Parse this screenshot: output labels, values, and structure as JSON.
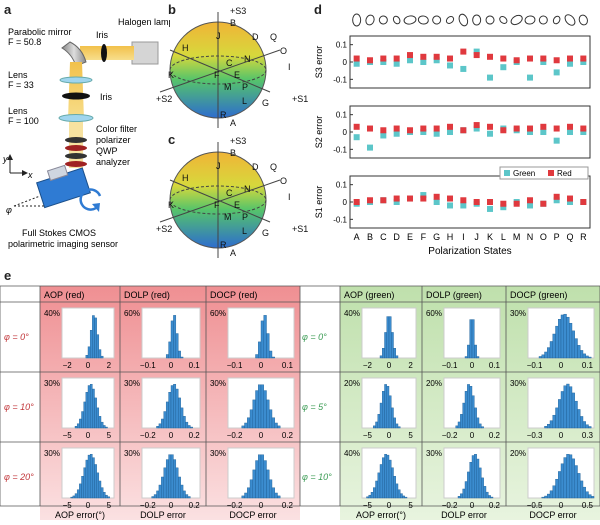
{
  "panels": {
    "a": "a",
    "b": "b",
    "c": "c",
    "d": "d",
    "e": "e"
  },
  "panel_a": {
    "parabolic_mirror": "Parabolic mirror",
    "mirror_f": "F = 50.8",
    "iris_top": "Iris",
    "halogen_lamp": "Halogen lamp",
    "lens1": "Lens",
    "lens1_f": "F = 33",
    "iris_mid": "Iris",
    "lens2": "Lens",
    "lens2_f": "F = 100",
    "color_filter": "Color filter",
    "polarizer": "polarizer",
    "qwp": "QWP",
    "analyzer": "analyzer",
    "axis_y": "y",
    "axis_x": "x",
    "phi": "φ",
    "sensor_line1": "Full Stokes CMOS",
    "sensor_line2": "polarimetric imaging sensor"
  },
  "sphere_labels": [
    "+S3",
    "B",
    "J",
    "D",
    "Q",
    "H",
    "O",
    "I",
    "K",
    "C",
    "N",
    "F",
    "E",
    "+S2",
    "+S1",
    "M",
    "P",
    "L",
    "G",
    "R",
    "A"
  ],
  "sphere_c_labels": [
    "+S3",
    "B",
    "J",
    "D",
    "Q",
    "H",
    "O",
    "I",
    "K",
    "C",
    "N",
    "F",
    "E",
    "+S2",
    "+S1",
    "M",
    "P",
    "L",
    "G",
    "R",
    "A"
  ],
  "chart_data": {
    "type": "scatter",
    "xlabel": "Polarization States",
    "categories": [
      "A",
      "B",
      "C",
      "D",
      "E",
      "F",
      "G",
      "H",
      "I",
      "J",
      "K",
      "L",
      "M",
      "N",
      "O",
      "P",
      "Q",
      "R"
    ],
    "legend": [
      "Green",
      "Red"
    ],
    "colors": {
      "green": "#5cc6c9",
      "red": "#e0393e"
    },
    "panels": [
      {
        "ylabel": "S3 error",
        "yticks": [
          0.1,
          0,
          -0.1
        ],
        "ylim": [
          -0.15,
          0.15
        ],
        "green": [
          -0.01,
          0.0,
          0.0,
          -0.01,
          0.01,
          0.0,
          0.01,
          -0.02,
          -0.04,
          0.06,
          -0.09,
          -0.03,
          0.0,
          -0.09,
          0.0,
          -0.06,
          -0.01,
          0.0
        ],
        "red": [
          0.02,
          0.01,
          0.02,
          0.02,
          0.04,
          0.03,
          0.03,
          0.02,
          0.06,
          0.04,
          0.03,
          0.02,
          0.01,
          0.02,
          0.02,
          0.01,
          0.02,
          0.02
        ]
      },
      {
        "ylabel": "S2 error",
        "yticks": [
          0.1,
          0,
          -0.1
        ],
        "ylim": [
          -0.15,
          0.15
        ],
        "green": [
          -0.03,
          -0.09,
          -0.02,
          -0.01,
          0.0,
          0.0,
          -0.01,
          0.0,
          0.01,
          0.02,
          -0.01,
          0.02,
          0.01,
          0.0,
          0.0,
          -0.05,
          0.0,
          0.0
        ],
        "red": [
          0.03,
          0.02,
          0.01,
          0.02,
          0.01,
          0.02,
          0.02,
          0.03,
          0.01,
          0.04,
          0.03,
          0.01,
          0.02,
          0.02,
          0.03,
          0.02,
          0.03,
          0.02
        ]
      },
      {
        "ylabel": "S1 error",
        "yticks": [
          0.1,
          0,
          -0.1
        ],
        "ylim": [
          -0.15,
          0.15
        ],
        "green": [
          -0.01,
          0.0,
          0.01,
          0.0,
          0.02,
          0.04,
          0.0,
          -0.02,
          -0.02,
          -0.01,
          -0.04,
          -0.03,
          0.0,
          -0.02,
          -0.01,
          0.01,
          0.0,
          0.0
        ],
        "red": [
          0.0,
          0.01,
          0.01,
          0.02,
          0.02,
          0.02,
          0.03,
          0.02,
          0.01,
          0.0,
          0.0,
          -0.01,
          -0.01,
          0.01,
          -0.01,
          0.03,
          0.02,
          0.0
        ]
      }
    ]
  },
  "table": {
    "red_header": [
      "AOP (red)",
      "DOLP (red)",
      "DOCP (red)"
    ],
    "green_header": [
      "AOP (green)",
      "DOLP (green)",
      "DOCP (green)"
    ],
    "red_rows": [
      "φ = 0°",
      "φ = 10°",
      "φ = 20°"
    ],
    "green_rows": [
      "φ = 0°",
      "φ = 5°",
      "φ = 10°"
    ],
    "footer": [
      "AOP error(°)",
      "DOLP error",
      "DOCP error",
      "AOP error(°)",
      "DOLP error",
      "DOCP error"
    ],
    "colors": {
      "red_row": "#c2373b",
      "green_row": "#3c9c55"
    },
    "cells": [
      [
        {
          "yl": "40%",
          "ticks": [
            "−2",
            "0",
            "2"
          ],
          "mu": 0.62,
          "s": 0.06
        },
        {
          "yl": "60%",
          "ticks": [
            "−0.1",
            "0",
            "0.1"
          ],
          "mu": 0.55,
          "s": 0.05
        },
        {
          "yl": "60%",
          "ticks": [
            "−0.1",
            "0",
            "0.1"
          ],
          "mu": 0.55,
          "s": 0.05
        },
        {
          "yl": "40%",
          "ticks": [
            "−2",
            "0",
            "2"
          ],
          "mu": 0.5,
          "s": 0.06
        },
        {
          "yl": "60%",
          "ticks": [
            "−0.1",
            "0",
            "0.1"
          ],
          "mu": 0.5,
          "s": 0.04
        },
        {
          "yl": "30%",
          "ticks": [
            "−0.1",
            "0",
            "0.1"
          ],
          "mu": 0.55,
          "s": 0.14
        }
      ],
      [
        {
          "yl": "30%",
          "ticks": [
            "−5",
            "0",
            "5"
          ],
          "mu": 0.55,
          "s": 0.11
        },
        {
          "yl": "30%",
          "ticks": [
            "−0.2",
            "0",
            "0.2"
          ],
          "mu": 0.55,
          "s": 0.11
        },
        {
          "yl": "30%",
          "ticks": [
            "−0.2",
            "0",
            "0.2"
          ],
          "mu": 0.5,
          "s": 0.11
        },
        {
          "yl": "20%",
          "ticks": [
            "−5",
            "0",
            "5"
          ],
          "mu": 0.45,
          "s": 0.09
        },
        {
          "yl": "20%",
          "ticks": [
            "−0.2",
            "0",
            "0.2"
          ],
          "mu": 0.45,
          "s": 0.09
        },
        {
          "yl": "30%",
          "ticks": [
            "−0.3",
            "0",
            "0.3"
          ],
          "mu": 0.6,
          "s": 0.13
        }
      ],
      [
        {
          "yl": "30%",
          "ticks": [
            "−5",
            "0",
            "5"
          ],
          "mu": 0.55,
          "s": 0.13
        },
        {
          "yl": "30%",
          "ticks": [
            "−0.2",
            "0",
            "0.2"
          ],
          "mu": 0.5,
          "s": 0.12
        },
        {
          "yl": "30%",
          "ticks": [
            "−0.2",
            "0",
            "0.2"
          ],
          "mu": 0.5,
          "s": 0.11
        },
        {
          "yl": "40%",
          "ticks": [
            "−5",
            "0",
            "5"
          ],
          "mu": 0.45,
          "s": 0.13
        },
        {
          "yl": "30%",
          "ticks": [
            "−0.2",
            "0",
            "0.2"
          ],
          "mu": 0.55,
          "s": 0.11
        },
        {
          "yl": "20%",
          "ticks": [
            "−0.5",
            "0",
            "0.5"
          ],
          "mu": 0.62,
          "s": 0.14
        }
      ]
    ]
  }
}
